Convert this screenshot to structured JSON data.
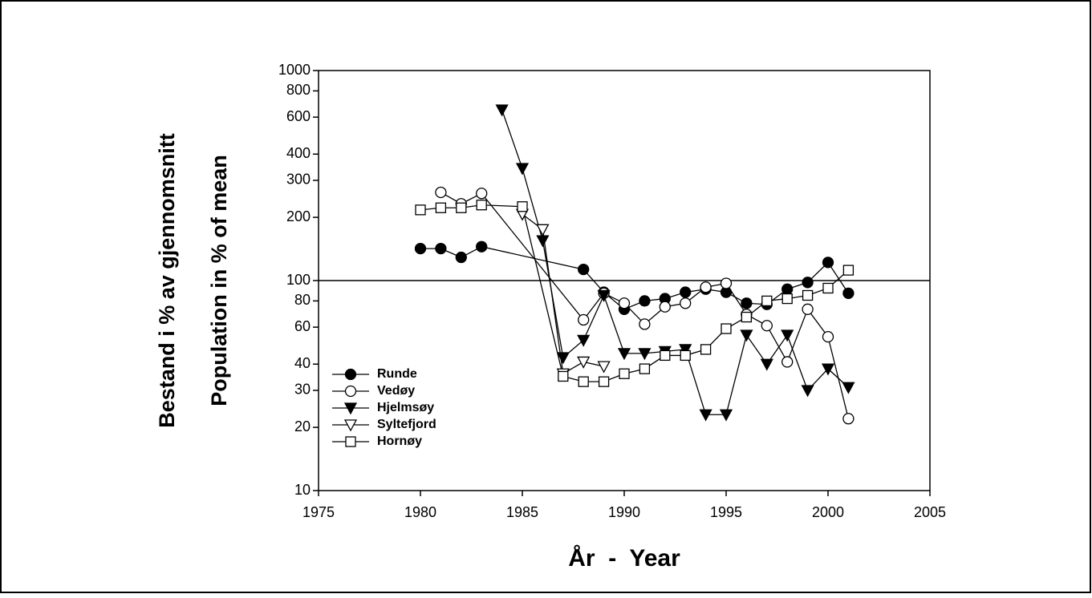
{
  "chart_data": {
    "type": "line",
    "y_labels": [
      "Bestand i % av gjennomsnitt",
      "Population in % of mean"
    ],
    "x_label": "År  -  Year",
    "xlim": [
      1975,
      2005
    ],
    "xticks": [
      1975,
      1980,
      1985,
      1990,
      1995,
      2000,
      2005
    ],
    "ylim": [
      10,
      1000
    ],
    "log_y": true,
    "yticks": [
      10,
      20,
      30,
      40,
      60,
      80,
      100,
      200,
      300,
      400,
      600,
      800,
      1000
    ],
    "reference_line": 100,
    "legend": "lower left",
    "series": [
      {
        "name": "Runde",
        "color": "#000000",
        "marker": "circle",
        "filled": true,
        "x": [
          1980,
          1981,
          1982,
          1983,
          1988,
          1989,
          1990,
          1991,
          1992,
          1993,
          1994,
          1995,
          1996,
          1997,
          1998,
          1999,
          2000,
          2001
        ],
        "values": [
          142,
          142,
          129,
          145,
          113,
          88,
          73,
          80,
          82,
          88,
          91,
          88,
          78,
          77,
          91,
          98,
          122,
          87
        ]
      },
      {
        "name": "Vedøy",
        "color": "#000000",
        "marker": "circle",
        "filled": false,
        "x": [
          1981,
          1982,
          1983,
          1988,
          1989,
          1990,
          1991,
          1992,
          1993,
          1994,
          1995,
          1996,
          1997,
          1998,
          1999,
          2000,
          2001
        ],
        "values": [
          263,
          232,
          260,
          65,
          87,
          78,
          62,
          75,
          78,
          93,
          97,
          69,
          61,
          41,
          73,
          54,
          22
        ]
      },
      {
        "name": "Hjelmsøy",
        "color": "#000000",
        "marker": "triangle-down",
        "filled": true,
        "x": [
          1984,
          1985,
          1986,
          1987,
          1988,
          1989,
          1990,
          1991,
          1992,
          1993,
          1994,
          1995,
          1996,
          1997,
          1998,
          1999,
          2000,
          2001
        ],
        "values": [
          650,
          342,
          155,
          43,
          52,
          85,
          45,
          45,
          46,
          47,
          23,
          23,
          55,
          40,
          55,
          30,
          38,
          31
        ]
      },
      {
        "name": "Syltefjord",
        "color": "#000000",
        "marker": "triangle-down",
        "filled": false,
        "x": [
          1985,
          1986,
          1987,
          1988,
          1989
        ],
        "values": [
          207,
          175,
          36,
          41,
          39
        ]
      },
      {
        "name": "Hornøy",
        "color": "#000000",
        "marker": "square",
        "filled": false,
        "x": [
          1980,
          1981,
          1982,
          1983,
          1985,
          1987,
          1988,
          1989,
          1990,
          1991,
          1992,
          1993,
          1994,
          1995,
          1996,
          1997,
          1998,
          1999,
          2000,
          2001
        ],
        "values": [
          217,
          222,
          222,
          229,
          225,
          35,
          33,
          33,
          36,
          38,
          44,
          44,
          47,
          59,
          67,
          80,
          82,
          85,
          92,
          112
        ]
      }
    ]
  }
}
